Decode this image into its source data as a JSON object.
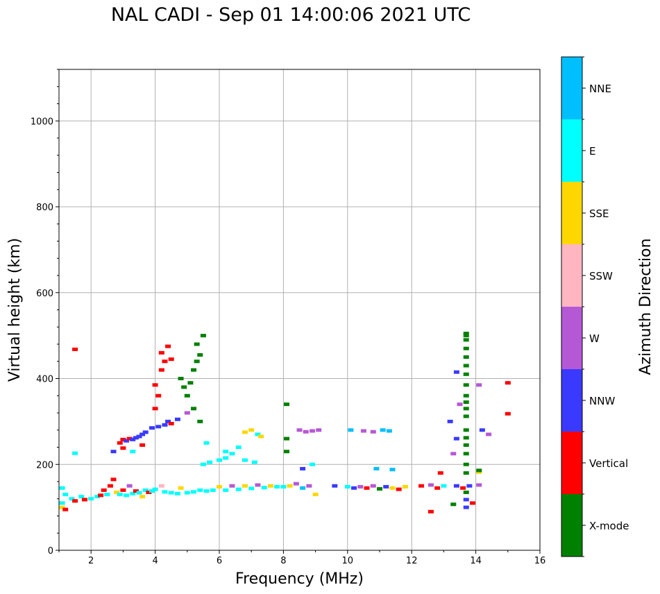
{
  "chart_data": {
    "type": "scatter",
    "title": "NAL CADI - Sep 01 14:00:06 2021 UTC",
    "xlabel": "Frequency (MHz)",
    "ylabel": "Virtual height (km)",
    "xlim": [
      1,
      16
    ],
    "ylim": [
      0,
      1120
    ],
    "xticks": [
      2,
      4,
      6,
      8,
      10,
      12,
      14,
      16
    ],
    "yticks": [
      0,
      200,
      400,
      600,
      800,
      1000
    ],
    "grid": true,
    "colorbar": {
      "label": "Azimuth Direction",
      "categories": [
        {
          "name": "X-mode",
          "color": "#008000"
        },
        {
          "name": "Vertical",
          "color": "#ff0000"
        },
        {
          "name": "NNW",
          "color": "#3a3aff"
        },
        {
          "name": "W",
          "color": "#b558d6"
        },
        {
          "name": "SSW",
          "color": "#ffb6c1"
        },
        {
          "name": "SSE",
          "color": "#ffd700"
        },
        {
          "name": "E",
          "color": "#00ffff"
        },
        {
          "name": "NNE",
          "color": "#00bfff"
        }
      ]
    },
    "points": [
      [
        "E",
        1.1,
        110
      ],
      [
        "E",
        1.1,
        145
      ],
      [
        "SSE",
        1.1,
        100
      ],
      [
        "E",
        1.2,
        130
      ],
      [
        "Vertical",
        1.2,
        95
      ],
      [
        "E",
        1.4,
        120
      ],
      [
        "Vertical",
        1.5,
        115
      ],
      [
        "E",
        1.7,
        125
      ],
      [
        "Vertical",
        1.8,
        118
      ],
      [
        "E",
        2.0,
        120
      ],
      [
        "E",
        2.2,
        125
      ],
      [
        "Vertical",
        2.3,
        128
      ],
      [
        "Vertical",
        2.4,
        140
      ],
      [
        "E",
        2.5,
        130
      ],
      [
        "Vertical",
        2.6,
        150
      ],
      [
        "Vertical",
        2.7,
        165
      ],
      [
        "SSE",
        2.8,
        135
      ],
      [
        "E",
        2.9,
        130
      ],
      [
        "Vertical",
        3.0,
        140
      ],
      [
        "E",
        3.1,
        128
      ],
      [
        "W",
        3.2,
        150
      ],
      [
        "E",
        3.3,
        132
      ],
      [
        "Vertical",
        3.4,
        138
      ],
      [
        "E",
        3.5,
        134
      ],
      [
        "SSE",
        3.6,
        125
      ],
      [
        "E",
        3.7,
        140
      ],
      [
        "Vertical",
        3.8,
        135
      ],
      [
        "E",
        3.9,
        138
      ],
      [
        "E",
        4.0,
        142
      ],
      [
        "SSW",
        4.2,
        150
      ],
      [
        "E",
        4.3,
        136
      ],
      [
        "E",
        4.5,
        134
      ],
      [
        "E",
        4.7,
        132
      ],
      [
        "SSE",
        4.8,
        145
      ],
      [
        "E",
        5.0,
        134
      ],
      [
        "E",
        5.2,
        136
      ],
      [
        "E",
        5.4,
        140
      ],
      [
        "E",
        5.6,
        138
      ],
      [
        "E",
        5.8,
        140
      ],
      [
        "SSE",
        6.0,
        148
      ],
      [
        "E",
        6.2,
        140
      ],
      [
        "W",
        6.4,
        150
      ],
      [
        "E",
        6.6,
        142
      ],
      [
        "SSE",
        6.8,
        150
      ],
      [
        "E",
        7.0,
        144
      ],
      [
        "W",
        7.2,
        152
      ],
      [
        "E",
        7.4,
        146
      ],
      [
        "SSE",
        7.6,
        150
      ],
      [
        "E",
        7.8,
        148
      ],
      [
        "E",
        8.0,
        148
      ],
      [
        "SSE",
        8.2,
        150
      ],
      [
        "W",
        8.4,
        155
      ],
      [
        "NNE",
        8.6,
        145
      ],
      [
        "W",
        8.8,
        150
      ],
      [
        "SSE",
        9.0,
        130
      ],
      [
        "NNW",
        9.6,
        150
      ],
      [
        "E",
        10.0,
        148
      ],
      [
        "NNW",
        10.2,
        145
      ],
      [
        "W",
        10.4,
        148
      ],
      [
        "Vertical",
        10.6,
        145
      ],
      [
        "W",
        10.8,
        150
      ],
      [
        "X-mode",
        11.0,
        143
      ],
      [
        "NNW",
        11.2,
        148
      ],
      [
        "SSE",
        11.4,
        145
      ],
      [
        "Vertical",
        11.6,
        142
      ],
      [
        "SSE",
        11.8,
        148
      ],
      [
        "Vertical",
        12.3,
        150
      ],
      [
        "W",
        12.6,
        152
      ],
      [
        "Vertical",
        12.8,
        145
      ],
      [
        "E",
        13.0,
        150
      ],
      [
        "NNW",
        13.4,
        150
      ],
      [
        "Vertical",
        13.6,
        145
      ],
      [
        "NNW",
        13.8,
        150
      ],
      [
        "W",
        14.1,
        152
      ],
      [
        "Vertical",
        2.9,
        250
      ],
      [
        "Vertical",
        3.0,
        258
      ],
      [
        "NNW",
        3.1,
        255
      ],
      [
        "Vertical",
        3.2,
        260
      ],
      [
        "NNW",
        3.3,
        258
      ],
      [
        "NNW",
        3.4,
        262
      ],
      [
        "NNW",
        3.5,
        265
      ],
      [
        "NNW",
        3.6,
        270
      ],
      [
        "NNW",
        3.7,
        275
      ],
      [
        "NNW",
        3.9,
        285
      ],
      [
        "NNW",
        4.1,
        288
      ],
      [
        "NNW",
        4.3,
        292
      ],
      [
        "NNW",
        4.4,
        300
      ],
      [
        "Vertical",
        4.5,
        295
      ],
      [
        "NNW",
        4.7,
        305
      ],
      [
        "Vertical",
        3.0,
        238
      ],
      [
        "NNW",
        2.7,
        230
      ],
      [
        "Vertical",
        3.6,
        245
      ],
      [
        "E",
        3.3,
        230
      ],
      [
        "Vertical",
        4.0,
        330
      ],
      [
        "Vertical",
        4.1,
        360
      ],
      [
        "Vertical",
        4.0,
        385
      ],
      [
        "Vertical",
        4.2,
        420
      ],
      [
        "Vertical",
        4.3,
        440
      ],
      [
        "Vertical",
        4.2,
        460
      ],
      [
        "Vertical",
        4.4,
        475
      ],
      [
        "Vertical",
        4.5,
        445
      ],
      [
        "X-mode",
        4.8,
        400
      ],
      [
        "X-mode",
        4.9,
        380
      ],
      [
        "X-mode",
        5.1,
        390
      ],
      [
        "X-mode",
        5.2,
        420
      ],
      [
        "X-mode",
        5.3,
        440
      ],
      [
        "X-mode",
        5.4,
        455
      ],
      [
        "X-mode",
        5.3,
        480
      ],
      [
        "X-mode",
        5.5,
        500
      ],
      [
        "X-mode",
        5.0,
        360
      ],
      [
        "X-mode",
        5.2,
        330
      ],
      [
        "X-mode",
        5.4,
        300
      ],
      [
        "W",
        5.0,
        320
      ],
      [
        "E",
        5.5,
        200
      ],
      [
        "E",
        5.7,
        205
      ],
      [
        "E",
        6.0,
        210
      ],
      [
        "E",
        6.2,
        215
      ],
      [
        "E",
        6.4,
        225
      ],
      [
        "E",
        6.6,
        240
      ],
      [
        "E",
        6.8,
        210
      ],
      [
        "E",
        7.1,
        205
      ],
      [
        "E",
        5.6,
        250
      ],
      [
        "E",
        6.2,
        230
      ],
      [
        "SSE",
        6.8,
        275
      ],
      [
        "SSE",
        7.0,
        280
      ],
      [
        "E",
        7.2,
        270
      ],
      [
        "SSE",
        7.3,
        265
      ],
      [
        "X-mode",
        8.1,
        340
      ],
      [
        "X-mode",
        8.1,
        260
      ],
      [
        "X-mode",
        8.1,
        230
      ],
      [
        "W",
        8.5,
        280
      ],
      [
        "W",
        8.7,
        276
      ],
      [
        "W",
        8.9,
        278
      ],
      [
        "W",
        9.1,
        280
      ],
      [
        "NNE",
        10.1,
        280
      ],
      [
        "W",
        10.5,
        278
      ],
      [
        "W",
        10.8,
        276
      ],
      [
        "NNE",
        11.1,
        280
      ],
      [
        "NNE",
        11.3,
        278
      ],
      [
        "NNW",
        8.6,
        190
      ],
      [
        "E",
        8.9,
        200
      ],
      [
        "NNE",
        10.9,
        190
      ],
      [
        "NNE",
        11.4,
        188
      ],
      [
        "NNW",
        13.2,
        300
      ],
      [
        "NNW",
        13.4,
        260
      ],
      [
        "W",
        13.3,
        225
      ],
      [
        "NNW",
        13.4,
        415
      ],
      [
        "W",
        13.5,
        340
      ],
      [
        "W",
        14.1,
        385
      ],
      [
        "NNW",
        14.2,
        280
      ],
      [
        "W",
        14.4,
        270
      ],
      [
        "Vertical",
        15.0,
        390
      ],
      [
        "Vertical",
        15.0,
        318
      ],
      [
        "Vertical",
        12.9,
        180
      ],
      [
        "Vertical",
        12.6,
        90
      ],
      [
        "SSE",
        14.1,
        182
      ],
      [
        "X-mode",
        14.1,
        186
      ],
      [
        "NNW",
        13.7,
        100
      ],
      [
        "Vertical",
        13.9,
        110
      ],
      [
        "X-mode",
        13.3,
        107
      ],
      [
        "NNW",
        13.7,
        118
      ],
      [
        "X-mode",
        13.7,
        135
      ],
      [
        "X-mode",
        13.7,
        180
      ],
      [
        "X-mode",
        13.7,
        200
      ],
      [
        "X-mode",
        13.7,
        225
      ],
      [
        "X-mode",
        13.7,
        245
      ],
      [
        "X-mode",
        13.7,
        262
      ],
      [
        "X-mode",
        13.7,
        280
      ],
      [
        "X-mode",
        13.7,
        312
      ],
      [
        "X-mode",
        13.7,
        330
      ],
      [
        "X-mode",
        13.7,
        345
      ],
      [
        "X-mode",
        13.7,
        360
      ],
      [
        "X-mode",
        13.7,
        385
      ],
      [
        "X-mode",
        13.7,
        410
      ],
      [
        "X-mode",
        13.7,
        430
      ],
      [
        "X-mode",
        13.7,
        450
      ],
      [
        "X-mode",
        13.7,
        470
      ],
      [
        "X-mode",
        13.7,
        490
      ],
      [
        "X-mode",
        13.7,
        500
      ],
      [
        "X-mode",
        13.7,
        505
      ],
      [
        "Vertical",
        1.5,
        468
      ],
      [
        "E",
        1.5,
        226
      ]
    ]
  }
}
